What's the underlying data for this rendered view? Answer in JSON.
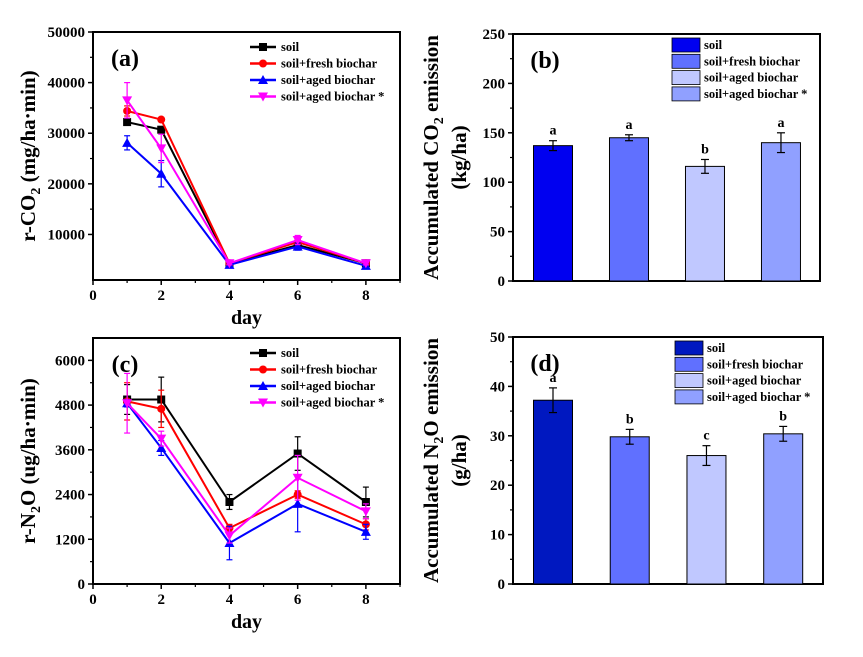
{
  "chart_data": [
    {
      "type": "line",
      "panel_label": "(a)",
      "xlabel": "day",
      "ylabel": {
        "pre": "r-CO",
        "sub": "2",
        "post": " (mg/ha·min)"
      },
      "xlim": [
        0,
        9
      ],
      "ylim": [
        1000,
        50000
      ],
      "xticks": [
        0,
        2,
        4,
        6,
        8
      ],
      "yticks": [
        10000,
        20000,
        30000,
        40000,
        50000
      ],
      "x": [
        1,
        2,
        4,
        6,
        8
      ],
      "legend_placement": "top-right",
      "series": [
        {
          "name": "soil",
          "color": "#000000",
          "marker": "square",
          "values": [
            32200,
            30700,
            4200,
            7900,
            4300
          ],
          "errors": [
            600,
            500,
            300,
            400,
            300
          ]
        },
        {
          "name": "soil+fresh biochar",
          "color": "#ff0000",
          "marker": "circle",
          "values": [
            34400,
            32700,
            4300,
            8500,
            4300
          ],
          "errors": [
            1000,
            400,
            300,
            500,
            300
          ]
        },
        {
          "name": "soil+aged biochar",
          "color": "#0000ff",
          "marker": "triangle-up",
          "values": [
            28100,
            22000,
            4000,
            7600,
            3800
          ],
          "errors": [
            1400,
            2600,
            300,
            700,
            300
          ]
        },
        {
          "name": "soil+aged biochar *",
          "color": "#ff00ff",
          "marker": "triangle-down",
          "values": [
            36500,
            27000,
            4300,
            8900,
            4300
          ],
          "errors": [
            3500,
            2800,
            300,
            900,
            300
          ]
        }
      ]
    },
    {
      "type": "bar",
      "panel_label": "(b)",
      "ylabel": {
        "pre": "Accumulated CO",
        "sub": "2",
        "post": " emission",
        "line2": "(kg/ha)"
      },
      "ylim": [
        0,
        250
      ],
      "yticks": [
        0,
        50,
        100,
        150,
        200,
        250
      ],
      "legend_placement": "top-right",
      "bars": [
        {
          "name": "soil",
          "value": 137,
          "error": 5,
          "letter": "a",
          "color": "#0000f0"
        },
        {
          "name": "soil+fresh biochar",
          "value": 145,
          "error": 3,
          "letter": "a",
          "color": "#6070ff"
        },
        {
          "name": "soil+aged biochar",
          "value": 116,
          "error": 7,
          "letter": "b",
          "color": "#c0c8ff"
        },
        {
          "name": "soil+aged biochar *",
          "value": 140,
          "error": 10,
          "letter": "a",
          "color": "#90a0ff"
        }
      ]
    },
    {
      "type": "line",
      "panel_label": "(c)",
      "xlabel": "day",
      "ylabel": {
        "pre": "r-N",
        "sub": "2",
        "post": "O (ug/ha·min)"
      },
      "xlim": [
        0,
        9
      ],
      "ylim": [
        0,
        6600
      ],
      "xticks": [
        0,
        2,
        4,
        6,
        8
      ],
      "yticks": [
        0,
        1200,
        2400,
        3600,
        4800,
        6000
      ],
      "x": [
        1,
        2,
        4,
        6,
        8
      ],
      "legend_placement": "top-right",
      "series": [
        {
          "name": "soil",
          "color": "#000000",
          "marker": "square",
          "values": [
            4950,
            4950,
            2200,
            3500,
            2200
          ],
          "errors": [
            400,
            600,
            200,
            450,
            400
          ]
        },
        {
          "name": "soil+fresh biochar",
          "color": "#ff0000",
          "marker": "circle",
          "values": [
            4900,
            4700,
            1500,
            2400,
            1600
          ],
          "errors": [
            500,
            500,
            100,
            100,
            150
          ]
        },
        {
          "name": "soil+aged biochar",
          "color": "#0000ff",
          "marker": "triangle-up",
          "values": [
            4850,
            3650,
            1100,
            2150,
            1400
          ],
          "errors": [
            100,
            200,
            450,
            750,
            200
          ]
        },
        {
          "name": "soil+aged biochar *",
          "color": "#ff00ff",
          "marker": "triangle-down",
          "values": [
            4850,
            3900,
            1300,
            2850,
            1950
          ],
          "errors": [
            800,
            200,
            200,
            600,
            200
          ]
        }
      ]
    },
    {
      "type": "bar",
      "panel_label": "(d)",
      "ylabel": {
        "pre": "Accumulated N",
        "sub": "2",
        "post": "O emission",
        "line2": "(g/ha)"
      },
      "ylim": [
        0,
        50
      ],
      "yticks": [
        0,
        10,
        20,
        30,
        40,
        50
      ],
      "legend_placement": "top-right",
      "bars": [
        {
          "name": "soil",
          "value": 37.2,
          "error": 2.5,
          "letter": "a",
          "color": "#0018c0"
        },
        {
          "name": "soil+fresh biochar",
          "value": 29.8,
          "error": 1.5,
          "letter": "b",
          "color": "#6070ff"
        },
        {
          "name": "soil+aged biochar",
          "value": 26.0,
          "error": 2.0,
          "letter": "c",
          "color": "#c0c8ff"
        },
        {
          "name": "soil+aged biochar *",
          "value": 30.4,
          "error": 1.5,
          "letter": "b",
          "color": "#90a0ff"
        }
      ]
    }
  ]
}
